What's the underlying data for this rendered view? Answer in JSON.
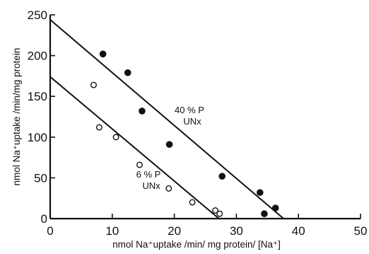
{
  "chart_data": {
    "type": "scatter",
    "title": "",
    "xlabel": "nmol Na⁺uptake /min/ mg protein/ [Na⁺]",
    "ylabel": "nmol Na⁺uptake /min/mg protein",
    "xlim": [
      0,
      50
    ],
    "ylim": [
      0,
      250
    ],
    "xticks": [
      "0",
      "10",
      "20",
      "30",
      "40",
      "50"
    ],
    "yticks": [
      "0",
      "50",
      "100",
      "150",
      "200",
      "250"
    ],
    "grid": false,
    "legend": "none",
    "series": [
      {
        "marker": "filled-circle",
        "annotation": [
          "40 % P",
          "UNx"
        ],
        "points": [
          {
            "x": 8.5,
            "y": 202
          },
          {
            "x": 12.5,
            "y": 179
          },
          {
            "x": 14.8,
            "y": 132
          },
          {
            "x": 19.2,
            "y": 91
          },
          {
            "x": 27.7,
            "y": 52
          },
          {
            "x": 33.8,
            "y": 32
          },
          {
            "x": 34.5,
            "y": 6
          },
          {
            "x": 36.3,
            "y": 13
          }
        ],
        "fit_line": {
          "x0": 0,
          "y0": 244,
          "x1": 37.6,
          "y1": 0
        }
      },
      {
        "marker": "open-circle",
        "annotation": [
          "6 % P",
          "UNx"
        ],
        "points": [
          {
            "x": 7.0,
            "y": 164
          },
          {
            "x": 7.9,
            "y": 112
          },
          {
            "x": 10.6,
            "y": 100
          },
          {
            "x": 14.4,
            "y": 66
          },
          {
            "x": 19.1,
            "y": 37
          },
          {
            "x": 22.9,
            "y": 20
          },
          {
            "x": 26.6,
            "y": 10
          },
          {
            "x": 27.3,
            "y": 6
          }
        ],
        "fit_line": {
          "x0": 0,
          "y0": 174,
          "x1": 27.2,
          "y1": 0
        }
      }
    ]
  }
}
